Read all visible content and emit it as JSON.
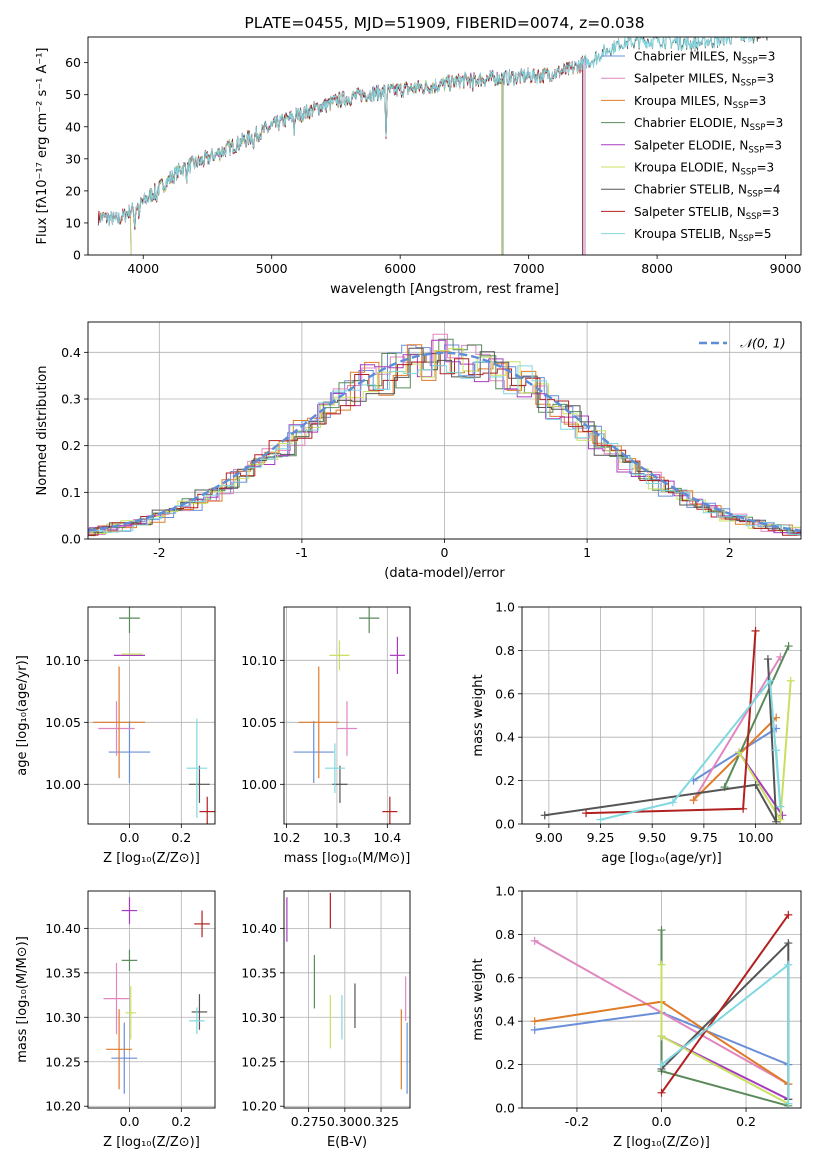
{
  "colors": {
    "chabrier_miles": "#6a8fd8",
    "salpeter_miles": "#e087c0",
    "kroupa_miles": "#e07b28",
    "chabrier_elodie": "#5a8a5a",
    "salpeter_elodie": "#a83cc0",
    "kroupa_elodie": "#c8e060",
    "chabrier_stelib": "#555555",
    "salpeter_stelib": "#b22020",
    "kroupa_stelib": "#80d8e0",
    "normal": "#5b8ed6"
  },
  "chart_data": [
    {
      "id": "spectrum",
      "type": "line",
      "title": "PLATE=0455, MJD=51909, FIBERID=0074, z=0.038",
      "xlabel": "wavelength [Angstrom, rest frame]",
      "ylabel": "Flux [fλ10⁻¹⁷ erg cm⁻² s⁻¹ A⁻¹]",
      "xlim": [
        3570,
        9120
      ],
      "ylim": [
        0,
        68
      ],
      "xticks": [
        4000,
        5000,
        6000,
        7000,
        8000,
        9000
      ],
      "yticks": [
        0,
        10,
        20,
        30,
        40,
        50,
        60
      ],
      "grid": false,
      "legend_position": "top-right",
      "legend": [
        {
          "label": "Chabrier MILES, N",
          "sub": "SSP",
          "tail": "=3",
          "color": "chabrier_miles"
        },
        {
          "label": "Salpeter MILES, N",
          "sub": "SSP",
          "tail": "=3",
          "color": "salpeter_miles"
        },
        {
          "label": "Kroupa MILES, N",
          "sub": "SSP",
          "tail": "=3",
          "color": "kroupa_miles"
        },
        {
          "label": "Chabrier ELODIE, N",
          "sub": "SSP",
          "tail": "=3",
          "color": "chabrier_elodie"
        },
        {
          "label": "Salpeter ELODIE, N",
          "sub": "SSP",
          "tail": "=3",
          "color": "salpeter_elodie"
        },
        {
          "label": "Kroupa ELODIE, N",
          "sub": "SSP",
          "tail": "=3",
          "color": "kroupa_elodie"
        },
        {
          "label": "Chabrier STELIB, N",
          "sub": "SSP",
          "tail": "=4",
          "color": "chabrier_stelib"
        },
        {
          "label": "Salpeter STELIB, N",
          "sub": "SSP",
          "tail": "=3",
          "color": "salpeter_stelib"
        },
        {
          "label": "Kroupa STELIB, N",
          "sub": "SSP",
          "tail": "=5",
          "color": "kroupa_stelib"
        }
      ],
      "continuum": {
        "x": [
          3650,
          3800,
          3950,
          4100,
          4300,
          4500,
          4700,
          4900,
          5100,
          5300,
          5500,
          5700,
          5900,
          6100,
          6300,
          6500,
          6700,
          6900,
          7100,
          7300,
          7500,
          7700,
          8000,
          8300,
          8600,
          8800
        ],
        "y": [
          12,
          11,
          15,
          20,
          27,
          30,
          34,
          38,
          42,
          45,
          48,
          50,
          51,
          52,
          53,
          54.5,
          55,
          55.5,
          56,
          57.5,
          61,
          66,
          67,
          66,
          68,
          69
        ]
      },
      "series_extent": {
        "chabrier_miles": 7430,
        "salpeter_miles": 7440,
        "kroupa_miles": 7420,
        "chabrier_elodie": 6800,
        "salpeter_elodie": 6790,
        "kroupa_elodie": 6790,
        "chabrier_stelib": 8900,
        "salpeter_stelib": 7420,
        "kroupa_stelib": 8750
      }
    },
    {
      "id": "residuals",
      "type": "histogram",
      "xlabel": "(data-model)/error",
      "ylabel": "Normed distribution",
      "xlim": [
        -2.5,
        2.5
      ],
      "ylim": [
        0,
        0.465
      ],
      "xticks": [
        -2,
        -1,
        0,
        1,
        2
      ],
      "yticks": [
        0.0,
        0.1,
        0.2,
        0.3,
        0.4
      ],
      "grid": true,
      "legend_position": "top-right",
      "normal_label": "𝒩(0, 1)",
      "bin_width": 0.1
    },
    {
      "id": "age_vs_Z",
      "type": "scatter",
      "xlabel": "Z [log₁₀(Z/Z⊙)]",
      "ylabel": "age  [log₁₀(age/yr)]",
      "xlim": [
        -0.16,
        0.33
      ],
      "ylim": [
        9.968,
        10.143
      ],
      "xticks": [
        0.0,
        0.2
      ],
      "yticks": [
        10.0,
        10.05,
        10.1
      ],
      "grid": true,
      "points": [
        {
          "c": "chabrier_miles",
          "x": 0.0,
          "y": 10.026,
          "xe": 0.08,
          "ye": 0.025
        },
        {
          "c": "salpeter_miles",
          "x": -0.05,
          "y": 10.045,
          "xe": 0.07,
          "ye": 0.022
        },
        {
          "c": "kroupa_miles",
          "x": -0.04,
          "y": 10.05,
          "xe": 0.1,
          "ye": 0.045
        },
        {
          "c": "chabrier_elodie",
          "x": 0.0,
          "y": 10.134,
          "xe": 0.04,
          "ye": 0.012
        },
        {
          "c": "salpeter_elodie",
          "x": 0.0,
          "y": 10.104,
          "xe": 0.06,
          "ye": 0.0
        },
        {
          "c": "kroupa_elodie",
          "x": 0.01,
          "y": 10.105,
          "xe": 0.04,
          "ye": 0.0
        },
        {
          "c": "chabrier_stelib",
          "x": 0.27,
          "y": 10.0,
          "xe": 0.04,
          "ye": 0.015
        },
        {
          "c": "salpeter_stelib",
          "x": 0.3,
          "y": 9.978,
          "xe": 0.03,
          "ye": 0.012
        },
        {
          "c": "kroupa_stelib",
          "x": 0.26,
          "y": 10.013,
          "xe": 0.04,
          "ye": 0.04
        }
      ]
    },
    {
      "id": "age_vs_mass",
      "type": "scatter",
      "xlabel": "mass [log₁₀(M/M⊙)]",
      "ylabel": "",
      "xlim": [
        10.195,
        10.445
      ],
      "ylim": [
        9.968,
        10.143
      ],
      "xticks": [
        10.2,
        10.3,
        10.4
      ],
      "yticks": [
        10.0,
        10.05,
        10.1
      ],
      "grid": true,
      "points": [
        {
          "c": "chabrier_miles",
          "x": 10.254,
          "y": 10.026,
          "xe": 0.04,
          "ye": 0.025
        },
        {
          "c": "salpeter_miles",
          "x": 10.32,
          "y": 10.045,
          "xe": 0.02,
          "ye": 0.022
        },
        {
          "c": "kroupa_miles",
          "x": 10.264,
          "y": 10.05,
          "xe": 0.04,
          "ye": 0.045
        },
        {
          "c": "chabrier_elodie",
          "x": 10.364,
          "y": 10.134,
          "xe": 0.02,
          "ye": 0.012
        },
        {
          "c": "salpeter_elodie",
          "x": 10.42,
          "y": 10.104,
          "xe": 0.015,
          "ye": 0.015
        },
        {
          "c": "kroupa_elodie",
          "x": 10.305,
          "y": 10.104,
          "xe": 0.02,
          "ye": 0.012
        },
        {
          "c": "chabrier_stelib",
          "x": 10.306,
          "y": 10.0,
          "xe": 0.015,
          "ye": 0.015
        },
        {
          "c": "salpeter_stelib",
          "x": 10.405,
          "y": 9.978,
          "xe": 0.015,
          "ye": 0.012
        },
        {
          "c": "kroupa_stelib",
          "x": 10.296,
          "y": 10.013,
          "xe": 0.02,
          "ye": 0.02
        }
      ]
    },
    {
      "id": "weight_vs_age",
      "type": "line",
      "xlabel": "age  [log₁₀(age/yr)]",
      "ylabel": "mass weight",
      "xlim": [
        8.87,
        10.22
      ],
      "ylim": [
        0,
        1.0
      ],
      "xticks": [
        9.0,
        9.25,
        9.5,
        9.75,
        10.0
      ],
      "yticks": [
        0.0,
        0.2,
        0.4,
        0.6,
        0.8,
        1.0
      ],
      "grid": true,
      "series": [
        {
          "c": "chabrier_miles",
          "x": [
            9.7,
            10.1
          ],
          "y": [
            0.2,
            0.44
          ]
        },
        {
          "c": "salpeter_miles",
          "x": [
            9.7,
            10.12
          ],
          "y": [
            0.11,
            0.77
          ]
        },
        {
          "c": "kroupa_miles",
          "x": [
            9.7,
            10.1
          ],
          "y": [
            0.11,
            0.49
          ]
        },
        {
          "c": "chabrier_elodie",
          "x": [
            9.85,
            10.16
          ],
          "y": [
            0.17,
            0.82
          ]
        },
        {
          "c": "salpeter_elodie",
          "x": [
            9.92,
            10.13
          ],
          "y": [
            0.33,
            0.04
          ]
        },
        {
          "c": "kroupa_elodie",
          "x": [
            9.92,
            10.12,
            10.17
          ],
          "y": [
            0.33,
            0.02,
            0.66
          ]
        },
        {
          "c": "chabrier_stelib",
          "x": [
            8.98,
            10.0,
            10.1,
            10.06
          ],
          "y": [
            0.04,
            0.18,
            0.01,
            0.76
          ]
        },
        {
          "c": "salpeter_stelib",
          "x": [
            9.18,
            9.94,
            10.0
          ],
          "y": [
            0.05,
            0.07,
            0.89
          ]
        },
        {
          "c": "kroupa_stelib",
          "x": [
            9.25,
            9.6,
            10.07,
            10.12,
            10.1
          ],
          "y": [
            0.02,
            0.1,
            0.66,
            0.08,
            0.34
          ]
        }
      ]
    },
    {
      "id": "mass_vs_Z",
      "type": "scatter",
      "xlabel": "Z [log₁₀(Z/Z⊙)]",
      "ylabel": "mass [log₁₀(M/M⊙)]",
      "xlim": [
        -0.16,
        0.33
      ],
      "ylim": [
        10.198,
        10.442
      ],
      "xticks": [
        0.0,
        0.2
      ],
      "yticks": [
        10.2,
        10.25,
        10.3,
        10.35,
        10.4
      ],
      "grid": true,
      "points": [
        {
          "c": "chabrier_miles",
          "x": -0.02,
          "y": 10.254,
          "xe": 0.05,
          "ye": 0.04
        },
        {
          "c": "salpeter_miles",
          "x": -0.05,
          "y": 10.321,
          "xe": 0.05,
          "ye": 0.04
        },
        {
          "c": "kroupa_miles",
          "x": -0.04,
          "y": 10.264,
          "xe": 0.05,
          "ye": 0.045
        },
        {
          "c": "chabrier_elodie",
          "x": 0.0,
          "y": 10.364,
          "xe": 0.03,
          "ye": 0.012
        },
        {
          "c": "salpeter_elodie",
          "x": 0.0,
          "y": 10.42,
          "xe": 0.03,
          "ye": 0.015
        },
        {
          "c": "kroupa_elodie",
          "x": 0.005,
          "y": 10.305,
          "xe": 0.02,
          "ye": 0.03
        },
        {
          "c": "chabrier_stelib",
          "x": 0.27,
          "y": 10.306,
          "xe": 0.03,
          "ye": 0.02
        },
        {
          "c": "salpeter_stelib",
          "x": 0.28,
          "y": 10.405,
          "xe": 0.03,
          "ye": 0.015
        },
        {
          "c": "kroupa_stelib",
          "x": 0.26,
          "y": 10.296,
          "xe": 0.03,
          "ye": 0.015
        }
      ]
    },
    {
      "id": "mass_vs_EBV",
      "type": "scatter",
      "xlabel": "E(B-V)",
      "ylabel": "",
      "xlim": [
        0.258,
        0.345
      ],
      "ylim": [
        10.198,
        10.442
      ],
      "xticks": [
        0.275,
        0.3,
        0.325
      ],
      "xtick_labels": [
        "0.275",
        "0.300",
        "0.325"
      ],
      "yticks": [
        10.2,
        10.25,
        10.3,
        10.35,
        10.4
      ],
      "grid": true,
      "points": [
        {
          "c": "chabrier_miles",
          "x": 0.343,
          "y": 10.254,
          "xe": 0.0,
          "ye": 0.04
        },
        {
          "c": "salpeter_miles",
          "x": 0.342,
          "y": 10.321,
          "xe": 0.0,
          "ye": 0.025
        },
        {
          "c": "kroupa_miles",
          "x": 0.339,
          "y": 10.264,
          "xe": 0.0,
          "ye": 0.045
        },
        {
          "c": "chabrier_elodie",
          "x": 0.279,
          "y": 10.34,
          "xe": 0.0,
          "ye": 0.03
        },
        {
          "c": "salpeter_elodie",
          "x": 0.26,
          "y": 10.41,
          "xe": 0.0,
          "ye": 0.025
        },
        {
          "c": "kroupa_elodie",
          "x": 0.29,
          "y": 10.295,
          "xe": 0.0,
          "ye": 0.03
        },
        {
          "c": "chabrier_stelib",
          "x": 0.307,
          "y": 10.313,
          "xe": 0.0,
          "ye": 0.025
        },
        {
          "c": "salpeter_stelib",
          "x": 0.29,
          "y": 10.42,
          "xe": 0.0,
          "ye": 0.02
        },
        {
          "c": "kroupa_stelib",
          "x": 0.298,
          "y": 10.3,
          "xe": 0.0,
          "ye": 0.025
        }
      ]
    },
    {
      "id": "weight_vs_Z",
      "type": "line",
      "xlabel": "Z [log₁₀(Z/Z⊙)]",
      "ylabel": "mass weight",
      "xlim": [
        -0.33,
        0.33
      ],
      "ylim": [
        0,
        1.0
      ],
      "xticks": [
        -0.2,
        0.0,
        0.2
      ],
      "yticks": [
        0.0,
        0.2,
        0.4,
        0.6,
        0.8,
        1.0
      ],
      "grid": true,
      "series": [
        {
          "c": "chabrier_miles",
          "x": [
            -0.3,
            0.0,
            0.3
          ],
          "y": [
            0.36,
            0.44,
            0.2
          ]
        },
        {
          "c": "salpeter_miles",
          "x": [
            -0.3,
            0.3
          ],
          "y": [
            0.77,
            0.11
          ]
        },
        {
          "c": "kroupa_miles",
          "x": [
            -0.3,
            0.0,
            0.3
          ],
          "y": [
            0.4,
            0.49,
            0.11
          ]
        },
        {
          "c": "chabrier_elodie",
          "x": [
            0.0,
            0.0,
            0.3
          ],
          "y": [
            0.82,
            0.17,
            0.01
          ]
        },
        {
          "c": "salpeter_elodie",
          "x": [
            0.0,
            0.3
          ],
          "y": [
            0.33,
            0.04
          ]
        },
        {
          "c": "kroupa_elodie",
          "x": [
            0.0,
            0.0,
            0.3
          ],
          "y": [
            0.66,
            0.33,
            0.02
          ]
        },
        {
          "c": "chabrier_stelib",
          "x": [
            0.0,
            0.3,
            0.3
          ],
          "y": [
            0.18,
            0.76,
            0.04
          ]
        },
        {
          "c": "salpeter_stelib",
          "x": [
            0.0,
            0.3
          ],
          "y": [
            0.07,
            0.89
          ]
        },
        {
          "c": "kroupa_stelib",
          "x": [
            0.0,
            0.3,
            0.3
          ],
          "y": [
            0.2,
            0.66,
            0.02
          ]
        }
      ]
    }
  ]
}
